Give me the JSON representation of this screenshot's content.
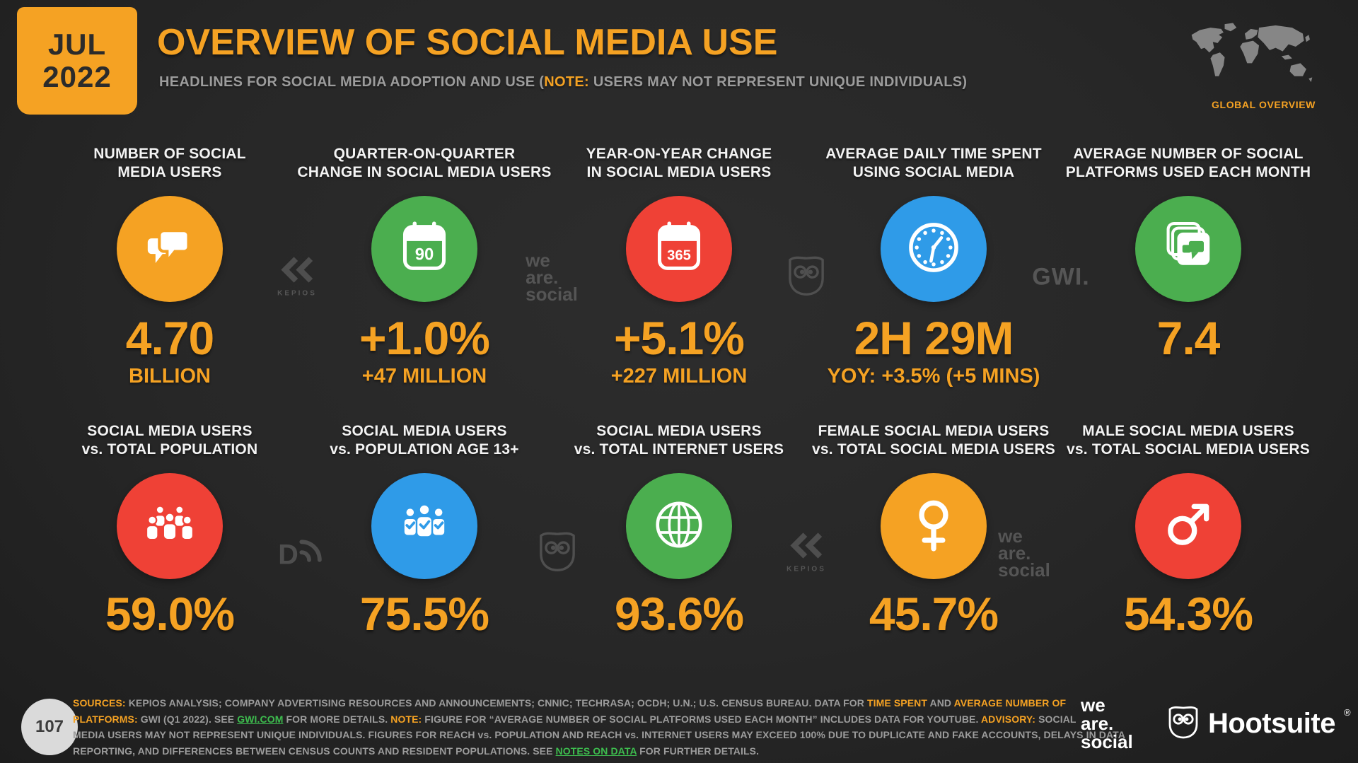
{
  "page": {
    "date_month": "JUL",
    "date_year": "2022",
    "title": "OVERVIEW OF SOCIAL MEDIA USE",
    "subtitle_segments": [
      {
        "text": "HEADLINES FOR SOCIAL MEDIA ADOPTION AND USE (",
        "style": "normal"
      },
      {
        "text": "NOTE:",
        "style": "highlight"
      },
      {
        "text": " USERS MAY NOT REPRESENT UNIQUE INDIVIDUALS)",
        "style": "normal"
      }
    ],
    "region_label": "GLOBAL OVERVIEW",
    "page_number": "107"
  },
  "colors": {
    "background": "#272727",
    "accent_orange": "#F5A223",
    "circle_green": "#4BAE4F",
    "circle_red": "#EF4136",
    "circle_blue": "#2F9BE8",
    "link_green": "#3DBC4E",
    "watermark_gray": "#565656"
  },
  "cards": {
    "row1": [
      {
        "label_lines": [
          "NUMBER OF SOCIAL",
          "MEDIA USERS"
        ],
        "icon": "chat-bubbles-icon",
        "circle_color": "#F5A223",
        "value": "4.70",
        "sub_value": "BILLION"
      },
      {
        "label_lines": [
          "QUARTER-ON-QUARTER",
          "CHANGE IN SOCIAL MEDIA USERS"
        ],
        "icon": "calendar-90-icon",
        "icon_label": "90",
        "circle_color": "#4BAE4F",
        "value": "+1.0%",
        "sub_value": "+47 MILLION"
      },
      {
        "label_lines": [
          "YEAR-ON-YEAR CHANGE",
          "IN SOCIAL MEDIA USERS"
        ],
        "icon": "calendar-365-icon",
        "icon_label": "365",
        "circle_color": "#EF4136",
        "value": "+5.1%",
        "sub_value": "+227 MILLION"
      },
      {
        "label_lines": [
          "AVERAGE DAILY TIME SPENT",
          "USING SOCIAL MEDIA"
        ],
        "icon": "clock-icon",
        "circle_color": "#2F9BE8",
        "value": "2H 29M",
        "sub_value": "YOY: +3.5% (+5 MINS)"
      },
      {
        "label_lines": [
          "AVERAGE NUMBER OF SOCIAL",
          "PLATFORMS USED EACH MONTH"
        ],
        "icon": "stacked-chats-icon",
        "circle_color": "#4BAE4F",
        "value": "7.4"
      }
    ],
    "row2": [
      {
        "label_lines": [
          "SOCIAL MEDIA USERS",
          "vs. TOTAL POPULATION"
        ],
        "icon": "people-group-icon",
        "circle_color": "#EF4136",
        "value": "59.0%"
      },
      {
        "label_lines": [
          "SOCIAL MEDIA USERS",
          "vs. POPULATION AGE 13+"
        ],
        "icon": "people-check-icon",
        "circle_color": "#2F9BE8",
        "value": "75.5%"
      },
      {
        "label_lines": [
          "SOCIAL MEDIA USERS",
          "vs. TOTAL INTERNET USERS"
        ],
        "icon": "globe-icon",
        "circle_color": "#4BAE4F",
        "value": "93.6%"
      },
      {
        "label_lines": [
          "FEMALE SOCIAL MEDIA USERS",
          "vs. TOTAL SOCIAL MEDIA USERS"
        ],
        "icon": "female-icon",
        "circle_color": "#F5A223",
        "value": "45.7%"
      },
      {
        "label_lines": [
          "MALE SOCIAL MEDIA USERS",
          "vs. TOTAL SOCIAL MEDIA USERS"
        ],
        "icon": "male-icon",
        "circle_color": "#EF4136",
        "value": "54.3%"
      }
    ]
  },
  "watermarks": {
    "row1": [
      "kepios-logo",
      "we-are-social-logo",
      "hootsuite-owl-logo",
      "gwi-logo"
    ],
    "row2": [
      "datareportal-logo",
      "hootsuite-owl-logo",
      "kepios-logo",
      "we-are-social-logo"
    ],
    "kepios_text": "KEPIOS",
    "gwi_text": "GWI.",
    "datareportal_letter": "D",
    "we_are_social_lines": [
      "we",
      "are.",
      "social"
    ]
  },
  "footer": {
    "source_lines": [
      [
        {
          "text": "SOURCES:",
          "style": "highlight"
        },
        {
          "text": " KEPIOS ANALYSIS; COMPANY ADVERTISING RESOURCES AND ANNOUNCEMENTS; CNNIC; TECHRASA; OCDH; U.N.; U.S. CENSUS BUREAU. DATA FOR ",
          "style": "normal"
        },
        {
          "text": "TIME SPENT",
          "style": "highlight"
        },
        {
          "text": " AND ",
          "style": "normal"
        },
        {
          "text": "AVERAGE NUMBER OF",
          "style": "highlight"
        }
      ],
      [
        {
          "text": "PLATFORMS:",
          "style": "highlight"
        },
        {
          "text": " GWI (Q1 2022). SEE ",
          "style": "normal"
        },
        {
          "text": "GWI.COM",
          "style": "link",
          "name": "gwi-com-link"
        },
        {
          "text": " FOR MORE DETAILS. ",
          "style": "normal"
        },
        {
          "text": "NOTE:",
          "style": "highlight"
        },
        {
          "text": " FIGURE FOR “AVERAGE NUMBER OF SOCIAL PLATFORMS USED EACH MONTH” INCLUDES DATA FOR YOUTUBE. ",
          "style": "normal"
        },
        {
          "text": "ADVISORY:",
          "style": "highlight"
        },
        {
          "text": " SOCIAL",
          "style": "normal"
        }
      ],
      [
        {
          "text": "MEDIA USERS MAY NOT REPRESENT UNIQUE INDIVIDUALS. FIGURES FOR REACH vs. POPULATION AND REACH vs. INTERNET USERS MAY EXCEED 100% DUE TO DUPLICATE AND FAKE ACCOUNTS, DELAYS IN DATA",
          "style": "normal"
        }
      ],
      [
        {
          "text": "REPORTING, AND DIFFERENCES BETWEEN CENSUS COUNTS AND RESIDENT POPULATIONS. SEE ",
          "style": "normal"
        },
        {
          "text": "NOTES ON DATA",
          "style": "link",
          "name": "notes-on-data-link"
        },
        {
          "text": " FOR FURTHER DETAILS.",
          "style": "normal"
        }
      ]
    ],
    "we_are_social_lines": [
      "we",
      "are.",
      "social"
    ],
    "hootsuite_label": "Hootsuite",
    "hootsuite_reg": "®"
  },
  "chart_data": {
    "type": "table",
    "title": "Overview of Social Media Use",
    "date": "JUL 2022",
    "region": "Global Overview",
    "categories": [
      "Number of social media users",
      "Quarter-on-quarter change in social media users",
      "Year-on-year change in social media users",
      "Average daily time spent using social media",
      "Average number of social platforms used each month",
      "Social media users vs. total population",
      "Social media users vs. population age 13+",
      "Social media users vs. total internet users",
      "Female social media users vs. total social media users",
      "Male social media users vs. total social media users"
    ],
    "values": [
      "4.70 BILLION",
      "+1.0% (+47 MILLION)",
      "+5.1% (+227 MILLION)",
      "2H 29M (YOY: +3.5%, +5 MINS)",
      "7.4",
      "59.0%",
      "75.5%",
      "93.6%",
      "45.7%",
      "54.3%"
    ]
  }
}
